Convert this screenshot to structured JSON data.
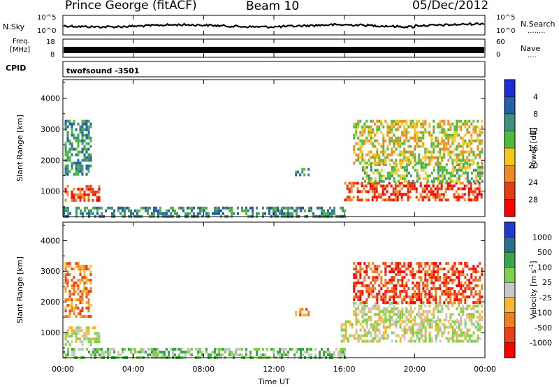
{
  "header": {
    "station": "Prince George (fitACF)",
    "beam": "Beam 10",
    "date": "05/Dec/2012"
  },
  "panels": {
    "noise": {
      "left_label": "N.Sky",
      "right_label": "N.Search",
      "left_ticks": [
        "10^5",
        "10^0"
      ],
      "right_ticks": [
        "10^5",
        "10^0"
      ]
    },
    "freq": {
      "left_label_top": "Freq.",
      "left_label_bottom": "[MHz]",
      "right_label": "Nave",
      "left_ticks": [
        "18",
        "8"
      ],
      "right_ticks": [
        "60",
        "0"
      ]
    },
    "cpid": {
      "label": "CPID",
      "value": "twofsound -3501"
    }
  },
  "time_axis": {
    "label": "Time UT",
    "ticks": [
      "00:00",
      "04:00",
      "08:00",
      "12:00",
      "16:00",
      "20:00",
      "00:00"
    ]
  },
  "chart_data": [
    {
      "type": "heatmap",
      "quantity": "Power",
      "ylabel": "Slant Range [km]",
      "y_ticks": [
        1000,
        2000,
        3000,
        4000
      ],
      "ylim": [
        180,
        4600
      ],
      "xlim_hours": [
        0,
        24
      ],
      "colorbar": {
        "label": "Power [dB]",
        "tick_labels": [
          "4",
          "8",
          "12",
          "16",
          "20",
          "24",
          "28"
        ],
        "colors": [
          "#1f2bd8",
          "#2360a8",
          "#3f8f7a",
          "#4dbb3a",
          "#f2c81e",
          "#f08a22",
          "#e43d14",
          "#ff0000"
        ]
      },
      "regions": [
        {
          "t0": 0.1,
          "t1": 2.1,
          "r0": 700,
          "r1": 1200,
          "level": 6
        },
        {
          "t0": 0.1,
          "t1": 1.6,
          "r0": 1500,
          "r1": 3300,
          "level": 2
        },
        {
          "t0": 0.0,
          "t1": 16.0,
          "r0": 200,
          "r1": 500,
          "level": 2
        },
        {
          "t0": 13.2,
          "t1": 14.0,
          "r0": 1550,
          "r1": 1750,
          "level": 2
        },
        {
          "t0": 16.0,
          "t1": 23.8,
          "r0": 700,
          "r1": 1300,
          "level": 6
        },
        {
          "t0": 17.0,
          "t1": 23.8,
          "r0": 1300,
          "r1": 1900,
          "level": 3
        },
        {
          "t0": 16.5,
          "t1": 23.8,
          "r0": 1900,
          "r1": 3300,
          "level": 4
        }
      ]
    },
    {
      "type": "heatmap",
      "quantity": "Velocity",
      "ylabel": "Slant Range [km]",
      "y_ticks": [
        1000,
        2000,
        3000,
        4000
      ],
      "ylim": [
        180,
        4600
      ],
      "xlim_hours": [
        0,
        24
      ],
      "colorbar": {
        "label": "Velocity [m s^-1]",
        "unit_text": "m s",
        "unit_exp": "-1",
        "tick_labels": [
          "1000",
          "500",
          "100",
          "25",
          "-25",
          "-100",
          "-500",
          "-1000"
        ],
        "colors": [
          "#2238cc",
          "#2d6e8c",
          "#3aa64a",
          "#7ed24a",
          "#c8c8c8",
          "#f7b733",
          "#f07f20",
          "#e8411a",
          "#ff0000"
        ]
      },
      "regions": [
        {
          "t0": 0.1,
          "t1": 2.1,
          "r0": 600,
          "r1": 1200,
          "level": 4
        },
        {
          "t0": 0.1,
          "t1": 1.6,
          "r0": 1500,
          "r1": 3300,
          "level": 6
        },
        {
          "t0": 0.0,
          "t1": 16.0,
          "r0": 200,
          "r1": 500,
          "level": 3
        },
        {
          "t0": 13.2,
          "t1": 14.0,
          "r0": 1600,
          "r1": 1800,
          "level": 6
        },
        {
          "t0": 15.8,
          "t1": 23.8,
          "r0": 700,
          "r1": 1400,
          "level": 4
        },
        {
          "t0": 16.5,
          "t1": 23.8,
          "r0": 1400,
          "r1": 2000,
          "level": 4
        },
        {
          "t0": 16.5,
          "t1": 23.8,
          "r0": 2000,
          "r1": 3300,
          "level": 7
        }
      ]
    }
  ]
}
